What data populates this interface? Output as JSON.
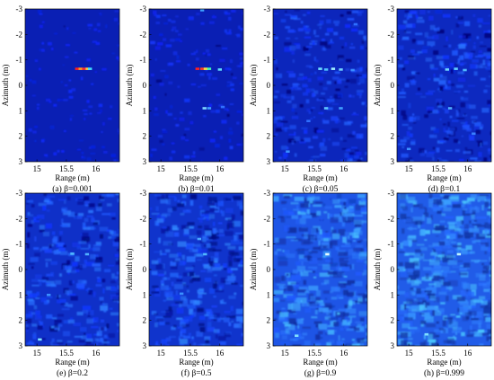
{
  "chart_data": [
    {
      "type": "heatmap",
      "caption": "(a) β=0.001",
      "xlabel": "Range (m)",
      "ylabel": "Azimuth (m)",
      "xticks": [
        "15",
        "15.5",
        "16"
      ],
      "yticks": [
        "-3",
        "-2",
        "-1",
        "0",
        "1",
        "2",
        "3"
      ],
      "xlim": [
        14.8,
        16.4
      ],
      "ylim": [
        -3,
        3
      ],
      "background": "#0a1fb4",
      "spots": [
        {
          "x": 15.68,
          "y": -0.65,
          "color": "#ff2020"
        },
        {
          "x": 15.74,
          "y": -0.65,
          "color": "#ff9a20"
        },
        {
          "x": 15.8,
          "y": -0.65,
          "color": "#ff3030"
        },
        {
          "x": 15.86,
          "y": -0.65,
          "color": "#ffd040"
        },
        {
          "x": 15.9,
          "y": -0.65,
          "color": "#40e0ff"
        }
      ]
    },
    {
      "type": "heatmap",
      "caption": "(b) β=0.01",
      "xlabel": "Range (m)",
      "ylabel": "Azimuth (m)",
      "xticks": [
        "15",
        "15.5",
        "16"
      ],
      "yticks": [
        "-3",
        "-2",
        "-1",
        "0",
        "1",
        "2",
        "3"
      ],
      "xlim": [
        14.8,
        16.4
      ],
      "ylim": [
        -3,
        3
      ],
      "background": "#0a1fb4",
      "spots": [
        {
          "x": 15.7,
          "y": -2.95,
          "color": "#3fa0ff"
        },
        {
          "x": 15.62,
          "y": -0.65,
          "color": "#ff2020"
        },
        {
          "x": 15.7,
          "y": -0.65,
          "color": "#ff4020"
        },
        {
          "x": 15.76,
          "y": -0.65,
          "color": "#ffe040"
        },
        {
          "x": 15.82,
          "y": -0.65,
          "color": "#40ffb0"
        },
        {
          "x": 16.0,
          "y": -0.62,
          "color": "#60e0ff"
        },
        {
          "x": 15.74,
          "y": 0.9,
          "color": "#7fd8ff"
        },
        {
          "x": 15.82,
          "y": 0.9,
          "color": "#40a0ff"
        },
        {
          "x": 16.05,
          "y": 0.85,
          "color": "#3070ff"
        }
      ]
    },
    {
      "type": "heatmap",
      "caption": "(c) β=0.05",
      "xlabel": "Range (m)",
      "ylabel": "Azimuth (m)",
      "xticks": [
        "15",
        "15.5",
        "16"
      ],
      "yticks": [
        "-3",
        "-2",
        "-1",
        "0",
        "1",
        "2",
        "3"
      ],
      "xlim": [
        14.8,
        16.4
      ],
      "ylim": [
        -3,
        3
      ],
      "background": "#0c26bc",
      "spots": [
        {
          "x": 15.6,
          "y": -0.65,
          "color": "#70e0ff"
        },
        {
          "x": 15.7,
          "y": -0.62,
          "color": "#50c0ff"
        },
        {
          "x": 15.82,
          "y": -0.65,
          "color": "#a0f0ff"
        },
        {
          "x": 15.95,
          "y": -0.62,
          "color": "#70d0ff"
        },
        {
          "x": 16.15,
          "y": -0.6,
          "color": "#3a8cff"
        },
        {
          "x": 15.7,
          "y": 0.9,
          "color": "#60c8ff"
        },
        {
          "x": 15.95,
          "y": 0.9,
          "color": "#40a0ff"
        },
        {
          "x": 15.05,
          "y": 2.6,
          "color": "#3a90ff"
        },
        {
          "x": 15.4,
          "y": 1.4,
          "color": "#2f70ff"
        },
        {
          "x": 16.2,
          "y": -2.4,
          "color": "#2f70ff"
        }
      ]
    },
    {
      "type": "heatmap",
      "caption": "(d) β=0.1",
      "xlabel": "Range (m)",
      "ylabel": "Azimuth (m)",
      "xticks": [
        "15",
        "15.5",
        "16"
      ],
      "yticks": [
        "-3",
        "-2",
        "-1",
        "0",
        "1",
        "2",
        "3"
      ],
      "xlim": [
        14.8,
        16.4
      ],
      "ylim": [
        -3,
        3
      ],
      "background": "#0d29c0",
      "spots": [
        {
          "x": 15.65,
          "y": -0.62,
          "color": "#70d8ff"
        },
        {
          "x": 15.8,
          "y": -0.65,
          "color": "#60d0ff"
        },
        {
          "x": 15.95,
          "y": -0.6,
          "color": "#50b8ff"
        },
        {
          "x": 15.7,
          "y": 0.9,
          "color": "#50b0ff"
        },
        {
          "x": 15.0,
          "y": 2.5,
          "color": "#3a90ff"
        },
        {
          "x": 16.1,
          "y": 1.9,
          "color": "#3a80ff"
        }
      ]
    },
    {
      "type": "heatmap",
      "caption": "(e) β=0.2",
      "xlabel": "Range (m)",
      "ylabel": "Azimuth (m)",
      "xticks": [
        "15",
        "15.5",
        "16"
      ],
      "yticks": [
        "-3",
        "-2",
        "-1",
        "0",
        "1",
        "2",
        "3"
      ],
      "xlim": [
        14.8,
        16.4
      ],
      "ylim": [
        -3,
        3
      ],
      "background": "#0f30c8",
      "spots": [
        {
          "x": 15.6,
          "y": -0.62,
          "color": "#50b8ff"
        },
        {
          "x": 15.85,
          "y": -0.6,
          "color": "#50b0ff"
        },
        {
          "x": 15.05,
          "y": 2.75,
          "color": "#80e8ff"
        },
        {
          "x": 15.2,
          "y": 1.0,
          "color": "#3a90ff"
        }
      ]
    },
    {
      "type": "heatmap",
      "caption": "(f) β=0.5",
      "xlabel": "Range (m)",
      "ylabel": "Azimuth (m)",
      "xticks": [
        "15",
        "15.5",
        "16"
      ],
      "yticks": [
        "-3",
        "-2",
        "-1",
        "0",
        "1",
        "2",
        "3"
      ],
      "xlim": [
        14.8,
        16.4
      ],
      "ylim": [
        -3,
        3
      ],
      "background": "#1034cc",
      "spots": [
        {
          "x": 15.65,
          "y": -1.2,
          "color": "#4aa8ff"
        },
        {
          "x": 15.75,
          "y": -0.6,
          "color": "#50b8ff"
        },
        {
          "x": 15.35,
          "y": 0.95,
          "color": "#3a90ff"
        }
      ]
    },
    {
      "type": "heatmap",
      "caption": "(g) β=0.9",
      "xlabel": "Range (m)",
      "ylabel": "Azimuth (m)",
      "xticks": [
        "15",
        "15.5",
        "16"
      ],
      "yticks": [
        "-3",
        "-2",
        "-1",
        "0",
        "1",
        "2",
        "3"
      ],
      "xlim": [
        14.8,
        16.4
      ],
      "ylim": [
        -3,
        3
      ],
      "background": "#1e55e6",
      "spots": [
        {
          "x": 15.72,
          "y": -0.6,
          "color": "#e8fbff"
        },
        {
          "x": 15.2,
          "y": 2.6,
          "color": "#80e0ff"
        }
      ]
    },
    {
      "type": "heatmap",
      "caption": "(h) β=0.999",
      "xlabel": "Range (m)",
      "ylabel": "Azimuth (m)",
      "xticks": [
        "15",
        "15.5",
        "16"
      ],
      "yticks": [
        "-3",
        "-2",
        "-1",
        "0",
        "1",
        "2",
        "3"
      ],
      "xlim": [
        14.8,
        16.4
      ],
      "ylim": [
        -3,
        3
      ],
      "background": "#215ce8",
      "spots": [
        {
          "x": 15.85,
          "y": -0.6,
          "color": "#c0f4ff"
        },
        {
          "x": 15.3,
          "y": 2.55,
          "color": "#80e0ff"
        }
      ]
    }
  ]
}
